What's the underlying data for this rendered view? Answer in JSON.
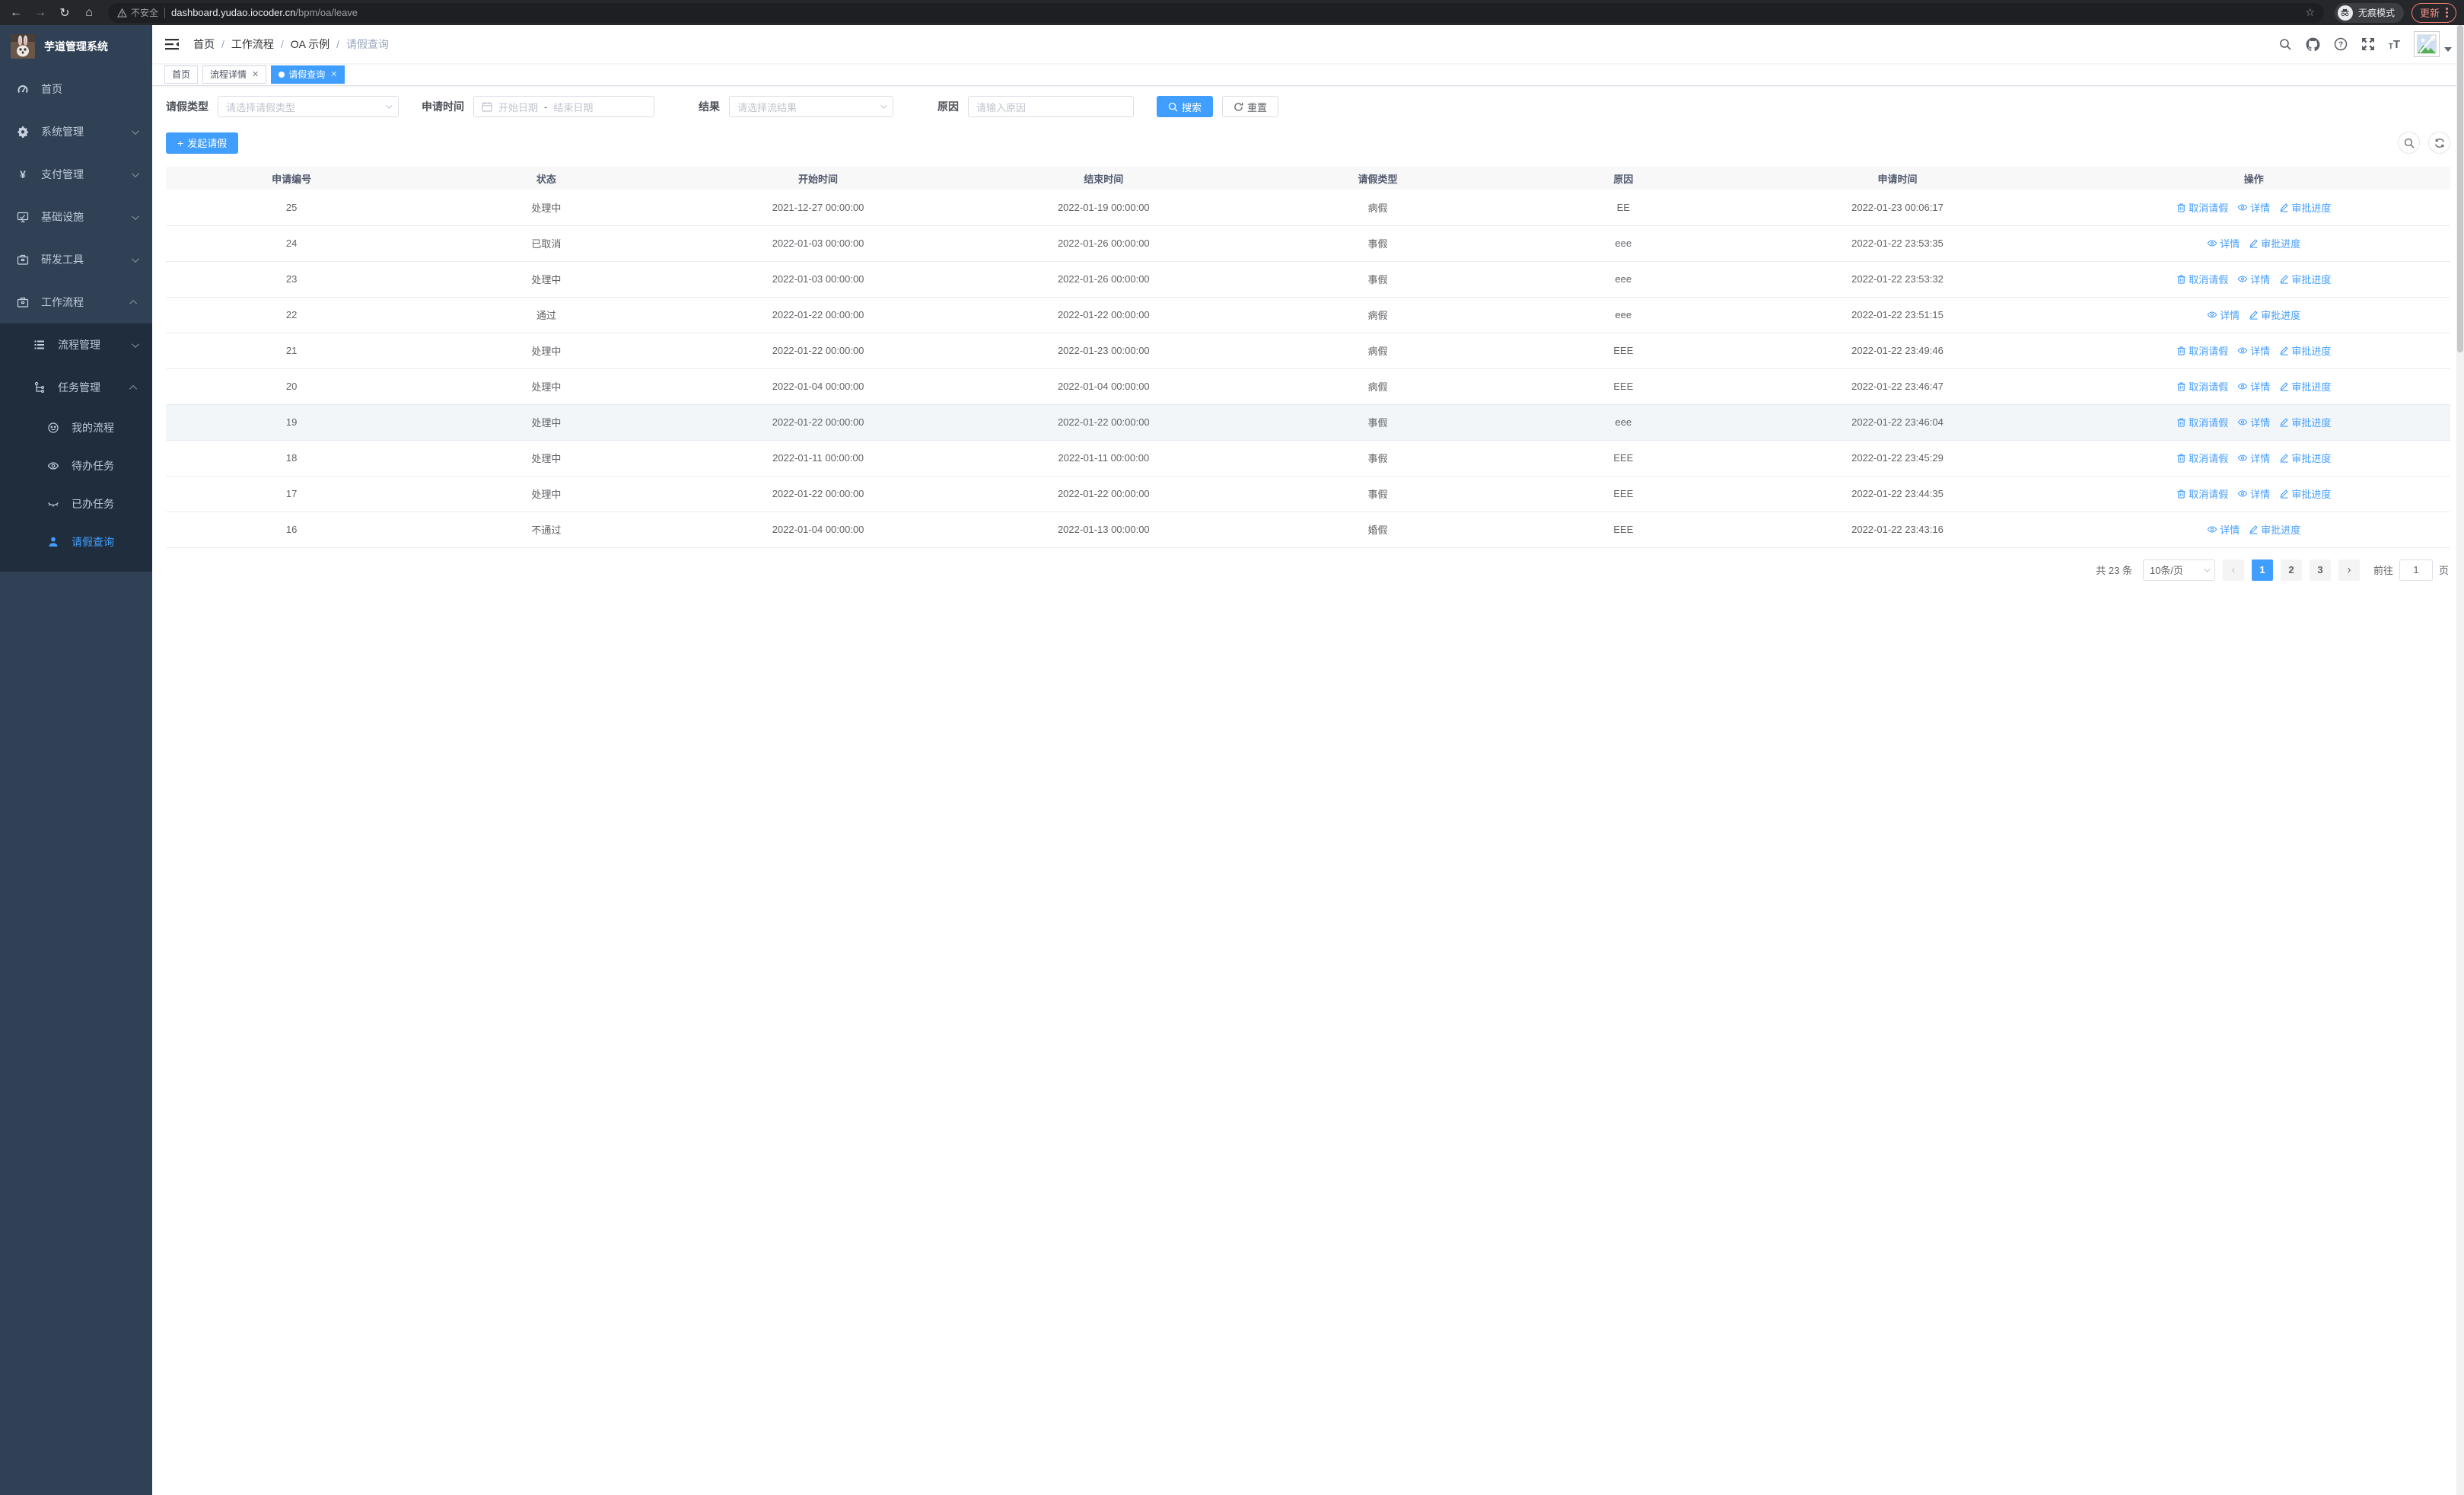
{
  "browser": {
    "security_warning": "不安全",
    "url_domain": "dashboard.yudao.iocoder.cn",
    "url_path": "/bpm/oa/leave",
    "incognito_label": "无痕模式",
    "update_label": "更新"
  },
  "sidebar": {
    "app_title": "芋道管理系统",
    "menu": [
      {
        "label": "首页",
        "icon": "dashboard-icon",
        "arrow": ""
      },
      {
        "label": "系统管理",
        "icon": "gear-icon",
        "arrow": "down"
      },
      {
        "label": "支付管理",
        "icon": "yen-icon",
        "arrow": "down"
      },
      {
        "label": "基础设施",
        "icon": "monitor-icon",
        "arrow": "down"
      },
      {
        "label": "研发工具",
        "icon": "briefcase-icon",
        "arrow": "down"
      },
      {
        "label": "工作流程",
        "icon": "briefcase-icon",
        "arrow": "up"
      }
    ],
    "submenu": [
      {
        "label": "流程管理",
        "icon": "list-icon",
        "arrow": "down",
        "level": 1,
        "active": false
      },
      {
        "label": "任务管理",
        "icon": "tree-icon",
        "arrow": "up",
        "level": 1,
        "active": false
      },
      {
        "label": "我的流程",
        "icon": "face-icon",
        "arrow": "",
        "level": 2,
        "active": false
      },
      {
        "label": "待办任务",
        "icon": "eye-icon",
        "arrow": "",
        "level": 2,
        "active": false
      },
      {
        "label": "已办任务",
        "icon": "eye-closed-icon",
        "arrow": "",
        "level": 2,
        "active": false
      },
      {
        "label": "请假查询",
        "icon": "user-icon",
        "arrow": "",
        "level": 2,
        "active": true
      }
    ]
  },
  "breadcrumb": [
    "首页",
    "工作流程",
    "OA 示例",
    "请假查询"
  ],
  "tabs": [
    {
      "label": "首页",
      "active": false,
      "closable": false
    },
    {
      "label": "流程详情",
      "active": false,
      "closable": true
    },
    {
      "label": "请假查询",
      "active": true,
      "closable": true
    }
  ],
  "filters": {
    "type_label": "请假类型",
    "type_placeholder": "请选择请假类型",
    "time_label": "申请时间",
    "date_start_placeholder": "开始日期",
    "date_separator": "-",
    "date_end_placeholder": "结束日期",
    "result_label": "结果",
    "result_placeholder": "请选择流结果",
    "reason_label": "原因",
    "reason_placeholder": "请输入原因",
    "search_button": "搜索",
    "reset_button": "重置"
  },
  "toolbar": {
    "create_button": "发起请假"
  },
  "table": {
    "headers": [
      "申请编号",
      "状态",
      "开始时间",
      "结束时间",
      "请假类型",
      "原因",
      "申请时间",
      "操作"
    ],
    "row_actions": {
      "cancel": "取消请假",
      "detail": "详情",
      "progress": "审批进度"
    },
    "rows": [
      {
        "id": "25",
        "status": "处理中",
        "start": "2021-12-27 00:00:00",
        "end": "2022-01-19 00:00:00",
        "type": "病假",
        "reason": "EE",
        "apply": "2022-01-23 00:06:17",
        "can_cancel": true,
        "highlighted": false
      },
      {
        "id": "24",
        "status": "已取消",
        "start": "2022-01-03 00:00:00",
        "end": "2022-01-26 00:00:00",
        "type": "事假",
        "reason": "eee",
        "apply": "2022-01-22 23:53:35",
        "can_cancel": false,
        "highlighted": false
      },
      {
        "id": "23",
        "status": "处理中",
        "start": "2022-01-03 00:00:00",
        "end": "2022-01-26 00:00:00",
        "type": "事假",
        "reason": "eee",
        "apply": "2022-01-22 23:53:32",
        "can_cancel": true,
        "highlighted": false
      },
      {
        "id": "22",
        "status": "通过",
        "start": "2022-01-22 00:00:00",
        "end": "2022-01-22 00:00:00",
        "type": "病假",
        "reason": "eee",
        "apply": "2022-01-22 23:51:15",
        "can_cancel": false,
        "highlighted": false
      },
      {
        "id": "21",
        "status": "处理中",
        "start": "2022-01-22 00:00:00",
        "end": "2022-01-23 00:00:00",
        "type": "病假",
        "reason": "EEE",
        "apply": "2022-01-22 23:49:46",
        "can_cancel": true,
        "highlighted": false
      },
      {
        "id": "20",
        "status": "处理中",
        "start": "2022-01-04 00:00:00",
        "end": "2022-01-04 00:00:00",
        "type": "病假",
        "reason": "EEE",
        "apply": "2022-01-22 23:46:47",
        "can_cancel": true,
        "highlighted": false
      },
      {
        "id": "19",
        "status": "处理中",
        "start": "2022-01-22 00:00:00",
        "end": "2022-01-22 00:00:00",
        "type": "事假",
        "reason": "eee",
        "apply": "2022-01-22 23:46:04",
        "can_cancel": true,
        "highlighted": true
      },
      {
        "id": "18",
        "status": "处理中",
        "start": "2022-01-11 00:00:00",
        "end": "2022-01-11 00:00:00",
        "type": "事假",
        "reason": "EEE",
        "apply": "2022-01-22 23:45:29",
        "can_cancel": true,
        "highlighted": false
      },
      {
        "id": "17",
        "status": "处理中",
        "start": "2022-01-22 00:00:00",
        "end": "2022-01-22 00:00:00",
        "type": "事假",
        "reason": "EEE",
        "apply": "2022-01-22 23:44:35",
        "can_cancel": true,
        "highlighted": false
      },
      {
        "id": "16",
        "status": "不通过",
        "start": "2022-01-04 00:00:00",
        "end": "2022-01-13 00:00:00",
        "type": "婚假",
        "reason": "EEE",
        "apply": "2022-01-22 23:43:16",
        "can_cancel": false,
        "highlighted": false
      }
    ]
  },
  "pagination": {
    "total_text": "共 23 条",
    "page_size": "10条/页",
    "pages": [
      "1",
      "2",
      "3"
    ],
    "current_page": "1",
    "goto_label": "前往",
    "goto_value": "1",
    "goto_suffix": "页"
  },
  "colors": {
    "accent": "#409eff",
    "sidebar": "#304156",
    "submenu": "#1f2d3d"
  }
}
